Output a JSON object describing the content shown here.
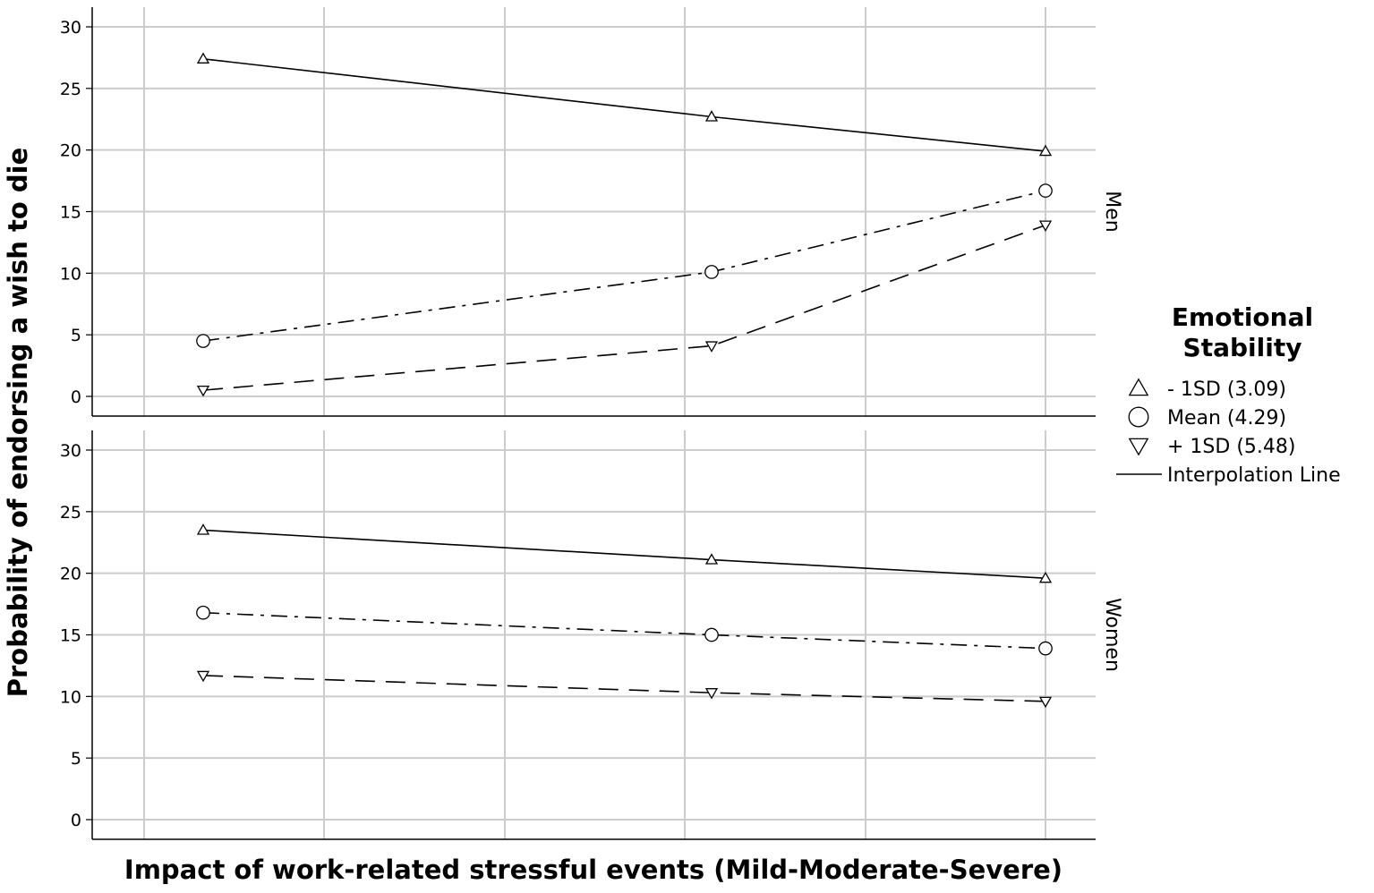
{
  "chart_data": {
    "type": "line",
    "xlabel": "Impact of work-related stressful events (Mild-Moderate-Severe)",
    "ylabel": "Probability of endorsing a wish to die",
    "ylim": [
      0,
      30
    ],
    "yticks": [
      0,
      5,
      10,
      15,
      20,
      25,
      30
    ],
    "grid": true,
    "x": [
      1,
      2,
      3
    ],
    "legend": {
      "title": "Emotional Stability",
      "placement": "right",
      "entries": [
        {
          "marker": "triangle-up",
          "label": "- 1SD (3.09)"
        },
        {
          "marker": "circle",
          "label": "Mean (4.29)"
        },
        {
          "marker": "triangle-down",
          "label": "+ 1SD (5.48)"
        },
        {
          "marker": "line",
          "label": "Interpolation Line"
        }
      ]
    },
    "panels": [
      {
        "label": "Men",
        "series": [
          {
            "name": "- 1SD (3.09)",
            "marker": "triangle-up",
            "dash": "solid",
            "values": [
              27.4,
              22.7,
              19.9
            ]
          },
          {
            "name": "Mean (4.29)",
            "marker": "circle",
            "dash": "dashdot",
            "values": [
              4.5,
              10.1,
              16.7
            ]
          },
          {
            "name": "+ 1SD (5.48)",
            "marker": "triangle-down",
            "dash": "dashed",
            "values": [
              0.5,
              4.1,
              13.9
            ]
          }
        ]
      },
      {
        "label": "Women",
        "series": [
          {
            "name": "- 1SD (3.09)",
            "marker": "triangle-up",
            "dash": "solid",
            "values": [
              23.5,
              21.1,
              19.6
            ]
          },
          {
            "name": "Mean (4.29)",
            "marker": "circle",
            "dash": "dashdot",
            "values": [
              16.8,
              15.0,
              13.9
            ]
          },
          {
            "name": "+ 1SD (5.48)",
            "marker": "triangle-down",
            "dash": "dashed",
            "values": [
              11.7,
              10.3,
              9.6
            ]
          }
        ]
      }
    ]
  }
}
